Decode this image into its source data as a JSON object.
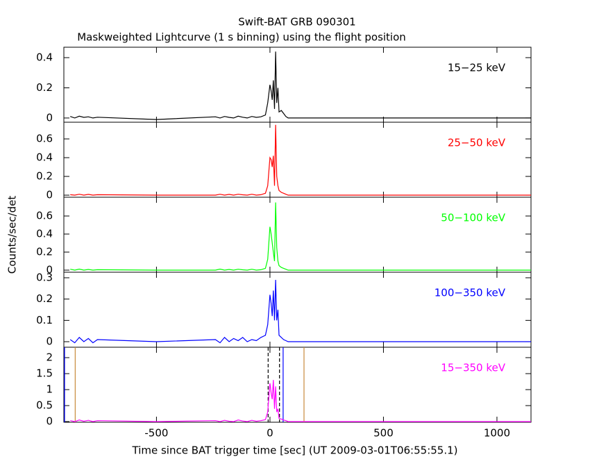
{
  "title": "Swift-BAT GRB 090301",
  "subtitle": "Maskweighted Lightcurve (1 s binning) using the flight position",
  "ylabel": "Counts/sec/det",
  "chart_data": [
    {
      "type": "line",
      "label": "15−25 keV",
      "color": "#000000",
      "xlim": [
        -908,
        1150
      ],
      "ylim": [
        -0.028,
        0.469
      ],
      "yticks": [
        0,
        0.2,
        0.4
      ],
      "x": [
        -880,
        -860,
        -840,
        -820,
        -800,
        -780,
        -760,
        -500,
        -240,
        -220,
        -200,
        -180,
        -160,
        -140,
        -120,
        -100,
        -80,
        -60,
        -40,
        -20,
        -10,
        0,
        5,
        10,
        15,
        20,
        25,
        30,
        35,
        40,
        50,
        60,
        70,
        80,
        1150
      ],
      "values": [
        0.01,
        0.0,
        0.012,
        0.004,
        0.008,
        0.0,
        0.005,
        -0.01,
        0.008,
        0.0,
        0.01,
        0.004,
        0.0,
        0.012,
        0.005,
        0.0,
        0.01,
        0.004,
        0.008,
        0.02,
        0.1,
        0.22,
        0.18,
        0.12,
        0.25,
        0.06,
        0.44,
        0.1,
        0.2,
        0.04,
        0.05,
        0.03,
        0.01,
        0.0,
        0.0
      ]
    },
    {
      "type": "line",
      "label": "25−50 keV",
      "color": "#ff0000",
      "xlim": [
        -908,
        1150
      ],
      "ylim": [
        -0.022,
        0.778
      ],
      "yticks": [
        0,
        0.2,
        0.4,
        0.6
      ],
      "x": [
        -880,
        -860,
        -840,
        -820,
        -800,
        -780,
        -760,
        -500,
        -240,
        -220,
        -200,
        -180,
        -160,
        -140,
        -120,
        -100,
        -80,
        -60,
        -40,
        -20,
        -10,
        0,
        5,
        10,
        15,
        20,
        25,
        30,
        35,
        40,
        50,
        60,
        70,
        80,
        1150
      ],
      "values": [
        0.005,
        0.0,
        0.01,
        0.0,
        0.008,
        0.0,
        0.005,
        0.0,
        0.0,
        0.01,
        0.0,
        0.008,
        0.0,
        0.01,
        0.004,
        0.0,
        0.01,
        0.0,
        0.005,
        0.02,
        0.1,
        0.4,
        0.38,
        0.3,
        0.42,
        0.1,
        0.75,
        0.2,
        0.1,
        0.05,
        0.03,
        0.02,
        0.01,
        0.0,
        0.0
      ]
    },
    {
      "type": "line",
      "label": "50−100 keV",
      "color": "#00ff00",
      "xlim": [
        -908,
        1150
      ],
      "ylim": [
        -0.023,
        0.808
      ],
      "yticks": [
        0,
        0.2,
        0.4,
        0.6
      ],
      "x": [
        -880,
        -860,
        -840,
        -820,
        -800,
        -780,
        -760,
        -500,
        -240,
        -220,
        -200,
        -180,
        -160,
        -140,
        -120,
        -100,
        -80,
        -60,
        -40,
        -20,
        -10,
        0,
        5,
        10,
        15,
        20,
        25,
        30,
        35,
        40,
        50,
        60,
        70,
        80,
        1150
      ],
      "values": [
        0.01,
        0.0,
        0.012,
        0.0,
        0.008,
        0.0,
        0.005,
        0.0,
        0.0,
        0.012,
        0.0,
        0.008,
        0.0,
        0.01,
        0.004,
        0.0,
        0.01,
        0.0,
        0.005,
        0.02,
        0.12,
        0.48,
        0.4,
        0.3,
        0.2,
        0.1,
        0.75,
        0.25,
        0.1,
        0.05,
        0.03,
        0.02,
        0.01,
        0.0,
        0.0
      ]
    },
    {
      "type": "line",
      "label": "100−350 keV",
      "color": "#0000ff",
      "xlim": [
        -908,
        1150
      ],
      "ylim": [
        -0.026,
        0.326
      ],
      "yticks": [
        0,
        0.1,
        0.2,
        0.3
      ],
      "x": [
        -880,
        -860,
        -840,
        -820,
        -800,
        -780,
        -760,
        -500,
        -240,
        -220,
        -200,
        -180,
        -160,
        -140,
        -120,
        -100,
        -80,
        -60,
        -40,
        -20,
        -10,
        0,
        5,
        10,
        15,
        20,
        25,
        30,
        35,
        40,
        50,
        60,
        70,
        80,
        1150
      ],
      "values": [
        0.01,
        -0.005,
        0.02,
        0.0,
        0.015,
        -0.005,
        0.01,
        0.0,
        0.01,
        -0.005,
        0.02,
        0.0,
        0.015,
        0.005,
        0.02,
        0.0,
        0.01,
        0.005,
        0.02,
        0.03,
        0.08,
        0.22,
        0.18,
        0.12,
        0.24,
        0.1,
        0.29,
        0.1,
        0.15,
        0.03,
        0.02,
        0.01,
        0.005,
        0.0,
        0.0
      ]
    },
    {
      "type": "line",
      "label": "15−350 keV",
      "color": "#ff00ff",
      "xlim": [
        -908,
        1150
      ],
      "ylim": [
        -0.02,
        2.326
      ],
      "yticks": [
        0,
        0.5,
        1,
        1.5,
        2
      ],
      "xticks": [
        -500,
        0,
        500,
        1000
      ],
      "xlabel": "Time since BAT trigger time [sec] (UT 2009-03-01T06:55:55.1)",
      "x": [
        -880,
        -860,
        -840,
        -820,
        -800,
        -780,
        -760,
        -500,
        -240,
        -220,
        -200,
        -180,
        -160,
        -140,
        -120,
        -100,
        -80,
        -60,
        -40,
        -20,
        -10,
        0,
        5,
        10,
        15,
        20,
        25,
        30,
        35,
        40,
        50,
        60,
        70,
        80,
        1150
      ],
      "values": [
        0.03,
        0.0,
        0.05,
        0.01,
        0.04,
        0.0,
        0.03,
        0.0,
        0.03,
        0.0,
        0.04,
        0.01,
        0.0,
        0.05,
        0.02,
        0.0,
        0.04,
        0.01,
        0.03,
        0.06,
        0.3,
        1.2,
        0.9,
        0.7,
        1.3,
        0.4,
        1.1,
        0.3,
        0.4,
        0.1,
        0.08,
        0.05,
        0.03,
        0.0,
        0.0
      ],
      "markers": [
        {
          "x": -858,
          "color": "#c8893a"
        },
        {
          "x": 150,
          "color": "#c8893a"
        },
        {
          "x": -905,
          "color": "#0000ff"
        },
        {
          "x": 58,
          "color": "#0000ff"
        },
        {
          "x": -8,
          "color": "#000000",
          "dash": true
        },
        {
          "x": 42,
          "color": "#000000",
          "dash": true
        }
      ]
    }
  ]
}
